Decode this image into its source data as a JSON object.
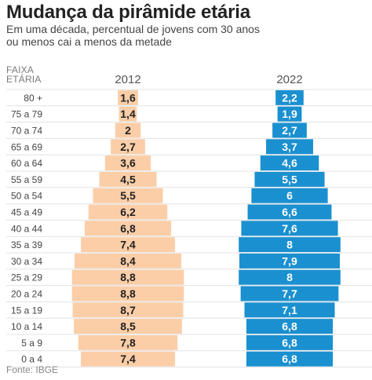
{
  "header": {
    "title": "Mudança da pirâmide etária",
    "subtitle": "Em uma década, percentual de jovens com 30 anos ou menos cai a menos da metade"
  },
  "axis_label": "FAIXA ETÁRIA",
  "source": "Fonte: IBGE",
  "colors": {
    "series_2012": "#fbceA8",
    "series_2022": "#1a90d0",
    "text_2012": "#222222",
    "text_2022": "#ffffff"
  },
  "chart_data": {
    "type": "bar",
    "xlabel": "",
    "ylabel": "FAIXA ETÁRIA",
    "categories": [
      "80 +",
      "75 a 79",
      "70 a 74",
      "65 a 69",
      "60 a 64",
      "55 a 59",
      "50 a 54",
      "45 a 49",
      "40 a 44",
      "35 a 39",
      "30 a 34",
      "25 a 29",
      "20 a 24",
      "15 a 19",
      "10 a 14",
      "5 a 9",
      "0 a 4"
    ],
    "series": [
      {
        "name": "2012",
        "values": [
          1.6,
          1.4,
          2,
          2.7,
          3.6,
          4.5,
          5.5,
          6.2,
          6.8,
          7.4,
          8.4,
          8.8,
          8.8,
          8.7,
          8.5,
          7.8,
          7.4
        ],
        "labels": [
          "1,6",
          "1,4",
          "2",
          "2,7",
          "3,6",
          "4,5",
          "5,5",
          "6,2",
          "6,8",
          "7,4",
          "8,4",
          "8,8",
          "8,8",
          "8,7",
          "8,5",
          "7,8",
          "7,4"
        ]
      },
      {
        "name": "2022",
        "values": [
          2.2,
          1.9,
          2.7,
          3.7,
          4.6,
          5.5,
          6,
          6.6,
          7.6,
          8,
          7.9,
          8,
          7.7,
          7.1,
          6.8,
          6.8,
          6.8
        ],
        "labels": [
          "2,2",
          "1,9",
          "2,7",
          "3,7",
          "4,6",
          "5,5",
          "6",
          "6,6",
          "7,6",
          "8",
          "7,9",
          "8",
          "7,7",
          "7,1",
          "6,8",
          "6,8",
          "6,8"
        ]
      }
    ]
  }
}
